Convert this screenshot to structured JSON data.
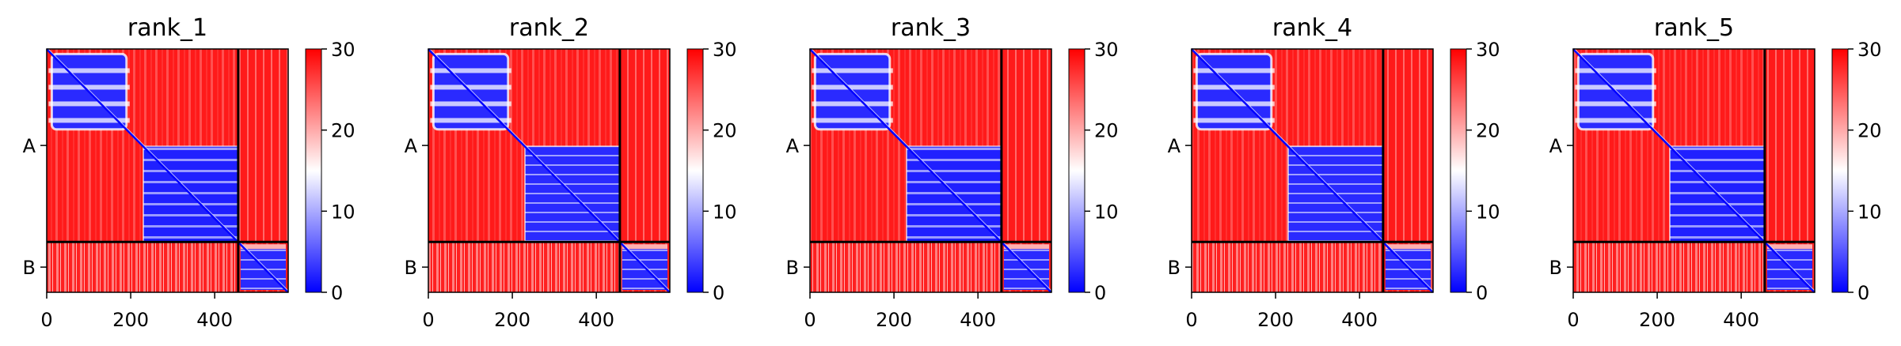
{
  "chart_data": [
    {
      "type": "heatmap",
      "title": "rank_1",
      "x_ticks": [
        0,
        200,
        400
      ],
      "x_range": [
        0,
        575
      ],
      "y_ticks": [
        "A",
        "B"
      ],
      "chain_boundary": 456,
      "colorbar": {
        "min": 0,
        "max": 30,
        "ticks": [
          0,
          10,
          20,
          30
        ],
        "colors": [
          "#0000ff",
          "#ffffff",
          "#ff0000"
        ]
      },
      "domain_boundary": 230
    },
    {
      "type": "heatmap",
      "title": "rank_2",
      "x_ticks": [
        0,
        200,
        400
      ],
      "x_range": [
        0,
        575
      ],
      "y_ticks": [
        "A",
        "B"
      ],
      "chain_boundary": 456,
      "colorbar": {
        "min": 0,
        "max": 30,
        "ticks": [
          0,
          10,
          20,
          30
        ],
        "colors": [
          "#0000ff",
          "#ffffff",
          "#ff0000"
        ]
      },
      "domain_boundary": 230
    },
    {
      "type": "heatmap",
      "title": "rank_3",
      "x_ticks": [
        0,
        200,
        400
      ],
      "x_range": [
        0,
        575
      ],
      "y_ticks": [
        "A",
        "B"
      ],
      "chain_boundary": 456,
      "colorbar": {
        "min": 0,
        "max": 30,
        "ticks": [
          0,
          10,
          20,
          30
        ],
        "colors": [
          "#0000ff",
          "#ffffff",
          "#ff0000"
        ]
      },
      "domain_boundary": 230
    },
    {
      "type": "heatmap",
      "title": "rank_4",
      "x_ticks": [
        0,
        200,
        400
      ],
      "x_range": [
        0,
        575
      ],
      "y_ticks": [
        "A",
        "B"
      ],
      "chain_boundary": 456,
      "colorbar": {
        "min": 0,
        "max": 30,
        "ticks": [
          0,
          10,
          20,
          30
        ],
        "colors": [
          "#0000ff",
          "#ffffff",
          "#ff0000"
        ]
      },
      "domain_boundary": 230
    },
    {
      "type": "heatmap",
      "title": "rank_5",
      "x_ticks": [
        0,
        200,
        400
      ],
      "x_range": [
        0,
        575
      ],
      "y_ticks": [
        "A",
        "B"
      ],
      "chain_boundary": 456,
      "colorbar": {
        "min": 0,
        "max": 30,
        "ticks": [
          0,
          10,
          20,
          30
        ],
        "colors": [
          "#0000ff",
          "#ffffff",
          "#ff0000"
        ]
      },
      "domain_boundary": 230
    }
  ]
}
